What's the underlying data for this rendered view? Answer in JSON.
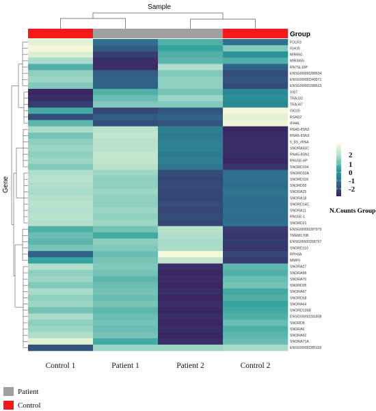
{
  "chart_data": {
    "type": "heatmap",
    "title": "Sample",
    "xlabel": "",
    "ylabel": "Gene",
    "group_label": "Group",
    "legend_title": "N.Counts Group",
    "color_scale": {
      "ticks": [
        2,
        1,
        0,
        -1,
        -2
      ],
      "colors": [
        "#fdfbd8",
        "#a8dcc9",
        "#2a9d9a",
        "#2f6c8b",
        "#3b1f5c"
      ]
    },
    "groups": [
      {
        "name": "Patient",
        "color": "#a0a0a0"
      },
      {
        "name": "Control",
        "color": "#f5181b"
      }
    ],
    "columns": [
      "Control 1",
      "Patient 1",
      "Patient 2",
      "Control 2"
    ],
    "column_groups": [
      "Control",
      "Patient",
      "Patient",
      "Control"
    ],
    "rows": [
      "FOLR3",
      "IGHJ5",
      "MIR650",
      "MIR3655",
      "RN7SL15P",
      "ENSG00000288634",
      "ENSG00000249971",
      "ENSG00000288623",
      "XIST",
      "TRAJ33",
      "TRAJ47",
      "ISG15",
      "RSAD2",
      "IFI44L",
      "RNA5-8SN2",
      "RNA5-8SN3",
      "5_8S_rRNA",
      "SNORA50C",
      "RNA5-8SN1",
      "RNU5E-6P",
      "SNORD104",
      "SNORD32A",
      "SNORD118",
      "SNORD55",
      "SNORA25",
      "SNORA18",
      "SNORD14C",
      "SNORA11",
      "RNU5E-1",
      "SNORD21",
      "ENSG00000287979",
      "TMEM176B",
      "ENSG00000258757",
      "SNORD110",
      "RPH3A",
      "MMP9",
      "SNORA27",
      "SNORA68",
      "SNORA70",
      "SNORD95",
      "SNORA67",
      "SNORD58",
      "SNORA64",
      "SNORD105B",
      "ENSG00000281808",
      "SNORD8",
      "SNORA6",
      "SNORA62",
      "SNORA71A",
      "ENSG00000285118"
    ],
    "values": [
      [
        1.7,
        -0.9,
        0.3,
        -0.9
      ],
      [
        1.9,
        -1.2,
        0.1,
        0.7
      ],
      [
        1.6,
        -1.6,
        0.3,
        -0.2
      ],
      [
        1.0,
        -1.8,
        0.4,
        0.3
      ],
      [
        0.3,
        -1.8,
        1.1,
        -1.1
      ],
      [
        0.8,
        -1.2,
        0.7,
        -1.4
      ],
      [
        0.9,
        -1.1,
        0.8,
        -1.3
      ],
      [
        0.7,
        -1.1,
        0.8,
        -1.4
      ],
      [
        -1.9,
        0.3,
        0.6,
        -0.4
      ],
      [
        -1.8,
        0.5,
        0.9,
        -0.3
      ],
      [
        -1.6,
        0.7,
        0.7,
        -0.4
      ],
      [
        0.2,
        -1.5,
        -1.3,
        1.9
      ],
      [
        -1.4,
        -1.2,
        -1.1,
        1.7
      ],
      [
        0.4,
        -1.4,
        -1.3,
        1.8
      ],
      [
        1.0,
        1.2,
        -0.6,
        -1.9
      ],
      [
        0.6,
        1.3,
        -0.7,
        -1.8
      ],
      [
        0.8,
        1.2,
        -0.6,
        -1.8
      ],
      [
        0.9,
        1.2,
        -0.6,
        -1.8
      ],
      [
        0.8,
        1.3,
        -0.7,
        -1.8
      ],
      [
        0.9,
        1.3,
        -0.6,
        -1.9
      ],
      [
        0.7,
        1.2,
        -0.8,
        -1.7
      ],
      [
        1.1,
        0.9,
        -1.4,
        -0.9
      ],
      [
        1.2,
        0.8,
        -1.5,
        -0.9
      ],
      [
        1.1,
        0.8,
        -1.4,
        -1.0
      ],
      [
        1.0,
        0.9,
        -1.5,
        -0.8
      ],
      [
        1.1,
        0.8,
        -1.5,
        -0.9
      ],
      [
        1.2,
        0.8,
        -1.4,
        -1.0
      ],
      [
        1.1,
        0.9,
        -1.5,
        -0.9
      ],
      [
        1.2,
        0.8,
        -1.4,
        -1.0
      ],
      [
        1.1,
        0.9,
        -1.5,
        -0.9
      ],
      [
        0.3,
        0.6,
        1.2,
        -1.6
      ],
      [
        0.5,
        0.2,
        1.1,
        -1.7
      ],
      [
        0.4,
        0.8,
        1.0,
        -1.6
      ],
      [
        0.6,
        0.7,
        1.0,
        -1.7
      ],
      [
        -1.1,
        0.5,
        1.9,
        -1.5
      ],
      [
        0.1,
        0.6,
        1.3,
        -1.6
      ],
      [
        1.1,
        0.7,
        -1.8,
        0.4
      ],
      [
        0.8,
        0.6,
        -1.9,
        0.3
      ],
      [
        0.9,
        0.4,
        -1.8,
        0.5
      ],
      [
        0.7,
        0.5,
        -1.9,
        0.6
      ],
      [
        1.0,
        0.6,
        -1.8,
        0.2
      ],
      [
        0.8,
        0.5,
        -1.9,
        0.3
      ],
      [
        0.9,
        0.6,
        -1.8,
        0.1
      ],
      [
        0.6,
        0.4,
        -1.9,
        0.2
      ],
      [
        1.0,
        0.5,
        -1.8,
        0.3
      ],
      [
        0.8,
        0.6,
        -1.9,
        0.5
      ],
      [
        0.9,
        0.5,
        -1.8,
        0.3
      ],
      [
        1.1,
        0.6,
        -1.9,
        0.4
      ],
      [
        1.7,
        0.2,
        -1.8,
        0.5
      ],
      [
        -1.3,
        0.9,
        0.9,
        1.0
      ]
    ]
  }
}
